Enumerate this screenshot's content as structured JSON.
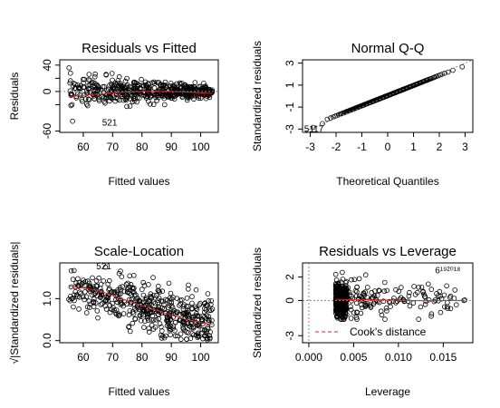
{
  "chart_data": [
    {
      "id": "residuals-vs-fitted",
      "type": "scatter",
      "title": "Residuals vs Fitted",
      "xlabel": "Fitted values",
      "ylabel": "Residuals",
      "xlim": [
        52,
        106
      ],
      "ylim": [
        -62,
        48
      ],
      "xticks": [
        60,
        70,
        80,
        90,
        100
      ],
      "yticks": [
        -60,
        -20,
        0,
        20,
        40
      ],
      "ytick_labels": [
        "-60",
        "",
        "0",
        "",
        "40"
      ],
      "reference_line_y": 0,
      "smoother": {
        "x": [
          55,
          60,
          65,
          70,
          80,
          90,
          100,
          104
        ],
        "y": [
          -8,
          -6,
          -4,
          -2,
          0,
          0,
          -2,
          -3
        ]
      },
      "point_labels": [
        {
          "text": "521",
          "x": 69,
          "y": -52
        }
      ],
      "point_cloud": {
        "count": 520,
        "x_range": [
          55,
          104
        ],
        "residual_band": "wide at low fitted values, narrowing toward high fitted values"
      }
    },
    {
      "id": "normal-qq",
      "type": "scatter",
      "title": "Normal Q-Q",
      "xlabel": "Theoretical Quantiles",
      "ylabel": "Standardized residuals",
      "xlim": [
        -3.3,
        3.3
      ],
      "ylim": [
        -3.3,
        3.3
      ],
      "xticks": [
        -3,
        -2,
        -1,
        0,
        1,
        2,
        3
      ],
      "yticks": [
        -3,
        -1,
        1,
        3
      ],
      "reference_line": {
        "x": [
          -3.3,
          3.3
        ],
        "y": [
          -3.3,
          3.3
        ]
      },
      "point_labels": [
        {
          "text": "5117",
          "x": -3.0,
          "y": -3.0
        }
      ]
    },
    {
      "id": "scale-location",
      "type": "scatter",
      "title": "Scale-Location",
      "xlabel": "Fitted values",
      "ylabel": "√|Standardized residuals|",
      "xlim": [
        52,
        106
      ],
      "ylim": [
        -0.05,
        1.85
      ],
      "xticks": [
        60,
        70,
        80,
        90,
        100
      ],
      "yticks": [
        0.0,
        1.0
      ],
      "ytick_labels": [
        "0.0",
        "1.0"
      ],
      "smoother": {
        "x": [
          55,
          65,
          75,
          85,
          95,
          104
        ],
        "y": [
          1.3,
          1.2,
          0.95,
          0.72,
          0.5,
          0.38
        ]
      },
      "point_labels": [
        {
          "text": "521",
          "x": 67,
          "y": 1.7
        }
      ]
    },
    {
      "id": "residuals-vs-leverage",
      "type": "scatter",
      "title": "Residuals vs Leverage",
      "xlabel": "Leverage",
      "ylabel": "Standardized residuals",
      "xlim": [
        -0.0007,
        0.0183
      ],
      "ylim": [
        -3.6,
        3.2
      ],
      "xticks": [
        0.0,
        0.005,
        0.01,
        0.015
      ],
      "xtick_labels": [
        "0.000",
        "0.005",
        "0.010",
        "0.015"
      ],
      "yticks": [
        -3,
        0,
        2
      ],
      "ytick_labels": [
        "-3",
        "0",
        "2"
      ],
      "reference_line_y": 0,
      "point_labels": [
        {
          "text": "6¹⁹²⁰¹⁸",
          "x": 0.0155,
          "y": 2.3
        }
      ],
      "legend": {
        "label": "Cook's distance",
        "placement": "bottom-left"
      }
    }
  ]
}
